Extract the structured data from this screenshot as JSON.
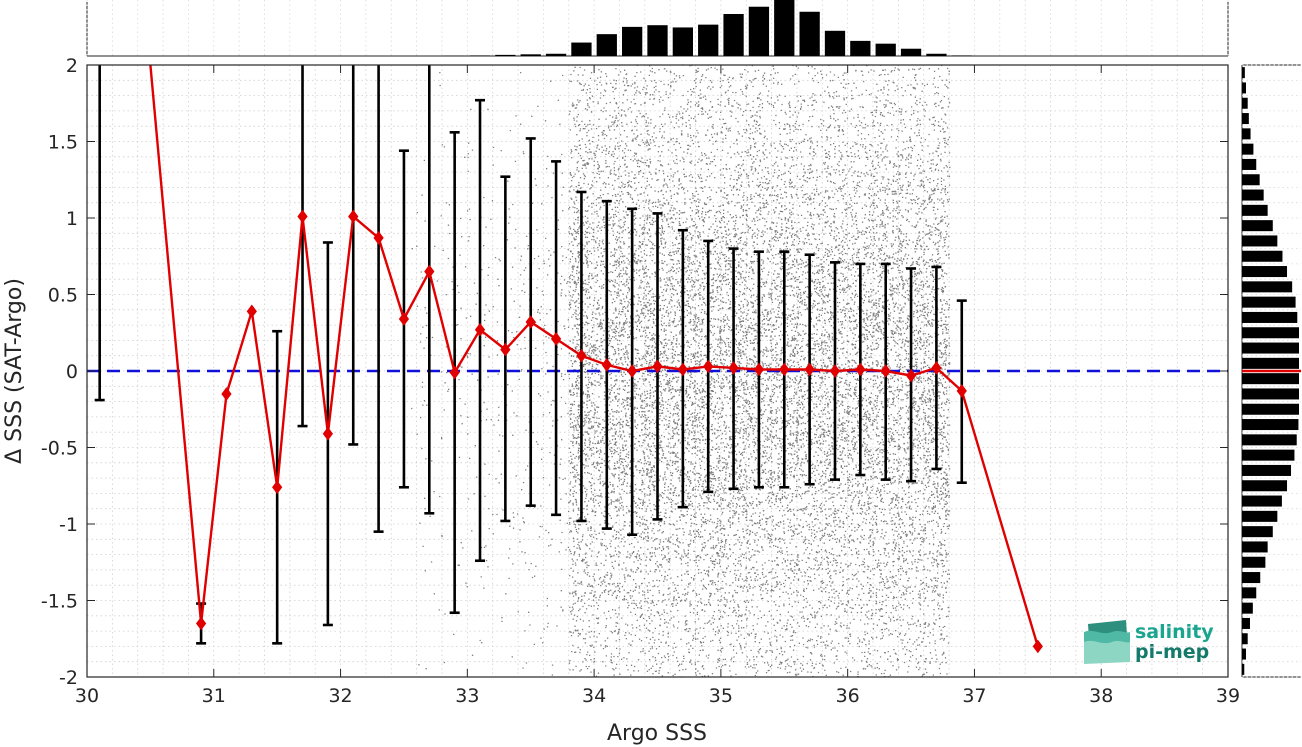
{
  "chart_data": {
    "type": "scatter",
    "xlabel": "Argo SSS",
    "ylabel": "Δ SSS (SAT-Argo)",
    "xlim": [
      30,
      39
    ],
    "ylim": [
      -2,
      2
    ],
    "xticks": [
      "30",
      "31",
      "32",
      "33",
      "34",
      "35",
      "36",
      "37",
      "38",
      "39"
    ],
    "yticks": [
      "-2",
      "-1.5",
      "-1",
      "-0.5",
      "0",
      "0.5",
      "1",
      "1.5",
      "2"
    ],
    "grid": true,
    "reference_line": {
      "y": 0,
      "style": "dashed",
      "color": "#1010d8"
    },
    "scatter_cloud": {
      "color": "#808080",
      "x_range": [
        33.8,
        36.8
      ],
      "y_range": [
        -2,
        2
      ],
      "sparse_x_range": [
        32.5,
        33.8
      ]
    },
    "binned_stats": {
      "color": "#e00000",
      "errorbar_color": "#000000",
      "bins": [
        {
          "x": 30.1,
          "mean": null,
          "lo": -0.19,
          "hi": 2.0
        },
        {
          "x": 30.5,
          "mean": 2.0,
          "lo": null,
          "hi": null
        },
        {
          "x": 30.9,
          "mean": -1.65,
          "lo": -1.78,
          "hi": -1.52
        },
        {
          "x": 31.1,
          "mean": -0.15,
          "lo": null,
          "hi": null
        },
        {
          "x": 31.3,
          "mean": 0.39,
          "lo": null,
          "hi": null
        },
        {
          "x": 31.5,
          "mean": -0.76,
          "lo": -1.78,
          "hi": 0.26
        },
        {
          "x": 31.7,
          "mean": 1.01,
          "lo": -0.36,
          "hi": 2.0
        },
        {
          "x": 31.9,
          "mean": -0.41,
          "lo": -1.66,
          "hi": 0.84
        },
        {
          "x": 32.1,
          "mean": 1.01,
          "lo": -0.48,
          "hi": 2.0
        },
        {
          "x": 32.3,
          "mean": 0.87,
          "lo": -1.05,
          "hi": 2.0
        },
        {
          "x": 32.5,
          "mean": 0.34,
          "lo": -0.76,
          "hi": 1.44
        },
        {
          "x": 32.7,
          "mean": 0.65,
          "lo": -0.93,
          "hi": 2.0
        },
        {
          "x": 32.9,
          "mean": -0.01,
          "lo": -1.58,
          "hi": 1.56
        },
        {
          "x": 33.1,
          "mean": 0.27,
          "lo": -1.24,
          "hi": 1.77
        },
        {
          "x": 33.3,
          "mean": 0.14,
          "lo": -0.98,
          "hi": 1.27
        },
        {
          "x": 33.5,
          "mean": 0.32,
          "lo": -0.88,
          "hi": 1.52
        },
        {
          "x": 33.7,
          "mean": 0.21,
          "lo": -0.94,
          "hi": 1.37
        },
        {
          "x": 33.9,
          "mean": 0.1,
          "lo": -0.98,
          "hi": 1.17
        },
        {
          "x": 34.1,
          "mean": 0.04,
          "lo": -1.03,
          "hi": 1.11
        },
        {
          "x": 34.3,
          "mean": 0.0,
          "lo": -1.07,
          "hi": 1.06
        },
        {
          "x": 34.5,
          "mean": 0.03,
          "lo": -0.97,
          "hi": 1.03
        },
        {
          "x": 34.7,
          "mean": 0.01,
          "lo": -0.89,
          "hi": 0.92
        },
        {
          "x": 34.9,
          "mean": 0.03,
          "lo": -0.79,
          "hi": 0.85
        },
        {
          "x": 35.1,
          "mean": 0.02,
          "lo": -0.77,
          "hi": 0.8
        },
        {
          "x": 35.3,
          "mean": 0.01,
          "lo": -0.76,
          "hi": 0.78
        },
        {
          "x": 35.5,
          "mean": 0.01,
          "lo": -0.76,
          "hi": 0.78
        },
        {
          "x": 35.7,
          "mean": 0.01,
          "lo": -0.74,
          "hi": 0.76
        },
        {
          "x": 35.9,
          "mean": 0.0,
          "lo": -0.71,
          "hi": 0.71
        },
        {
          "x": 36.1,
          "mean": 0.01,
          "lo": -0.68,
          "hi": 0.7
        },
        {
          "x": 36.3,
          "mean": 0.0,
          "lo": -0.71,
          "hi": 0.7
        },
        {
          "x": 36.5,
          "mean": -0.03,
          "lo": -0.72,
          "hi": 0.67
        },
        {
          "x": 36.7,
          "mean": 0.02,
          "lo": -0.64,
          "hi": 0.68
        },
        {
          "x": 36.9,
          "mean": -0.13,
          "lo": -0.73,
          "hi": 0.46
        },
        {
          "x": 37.5,
          "mean": -1.8,
          "lo": -1.8,
          "hi": -1.8
        }
      ]
    },
    "top_histogram": {
      "bins_x": [
        32.9,
        33.1,
        33.3,
        33.5,
        33.7,
        33.9,
        34.1,
        34.3,
        34.5,
        34.7,
        34.9,
        35.1,
        35.3,
        35.5,
        35.7,
        35.9,
        36.1,
        36.3,
        36.5,
        36.7,
        36.9
      ],
      "values": [
        0.005,
        0.01,
        0.02,
        0.03,
        0.04,
        0.24,
        0.39,
        0.52,
        0.55,
        0.51,
        0.56,
        0.75,
        0.88,
        1.0,
        0.79,
        0.45,
        0.27,
        0.22,
        0.13,
        0.04,
        0.01
      ]
    },
    "right_histogram": {
      "bins_y": [
        -1.95,
        -1.85,
        -1.75,
        -1.65,
        -1.55,
        -1.45,
        -1.35,
        -1.25,
        -1.15,
        -1.05,
        -0.95,
        -0.85,
        -0.75,
        -0.65,
        -0.55,
        -0.45,
        -0.35,
        -0.25,
        -0.15,
        -0.05,
        0.05,
        0.15,
        0.25,
        0.35,
        0.45,
        0.55,
        0.65,
        0.75,
        0.85,
        0.95,
        1.05,
        1.15,
        1.25,
        1.35,
        1.45,
        1.55,
        1.65,
        1.75,
        1.85,
        1.95
      ],
      "values": [
        0.04,
        0.07,
        0.1,
        0.14,
        0.19,
        0.25,
        0.32,
        0.41,
        0.45,
        0.54,
        0.62,
        0.7,
        0.79,
        0.86,
        0.92,
        0.96,
        0.99,
        1.0,
        1.0,
        1.0,
        1.0,
        1.0,
        1.0,
        0.97,
        0.94,
        0.88,
        0.79,
        0.71,
        0.62,
        0.54,
        0.45,
        0.38,
        0.31,
        0.25,
        0.2,
        0.15,
        0.12,
        0.1,
        0.07,
        0.05
      ],
      "mean_line": {
        "y": 0,
        "color": "#e00000"
      }
    }
  },
  "logo": {
    "line1": "salinity",
    "line2": "pi-mep",
    "color": "#1a9a8a"
  }
}
